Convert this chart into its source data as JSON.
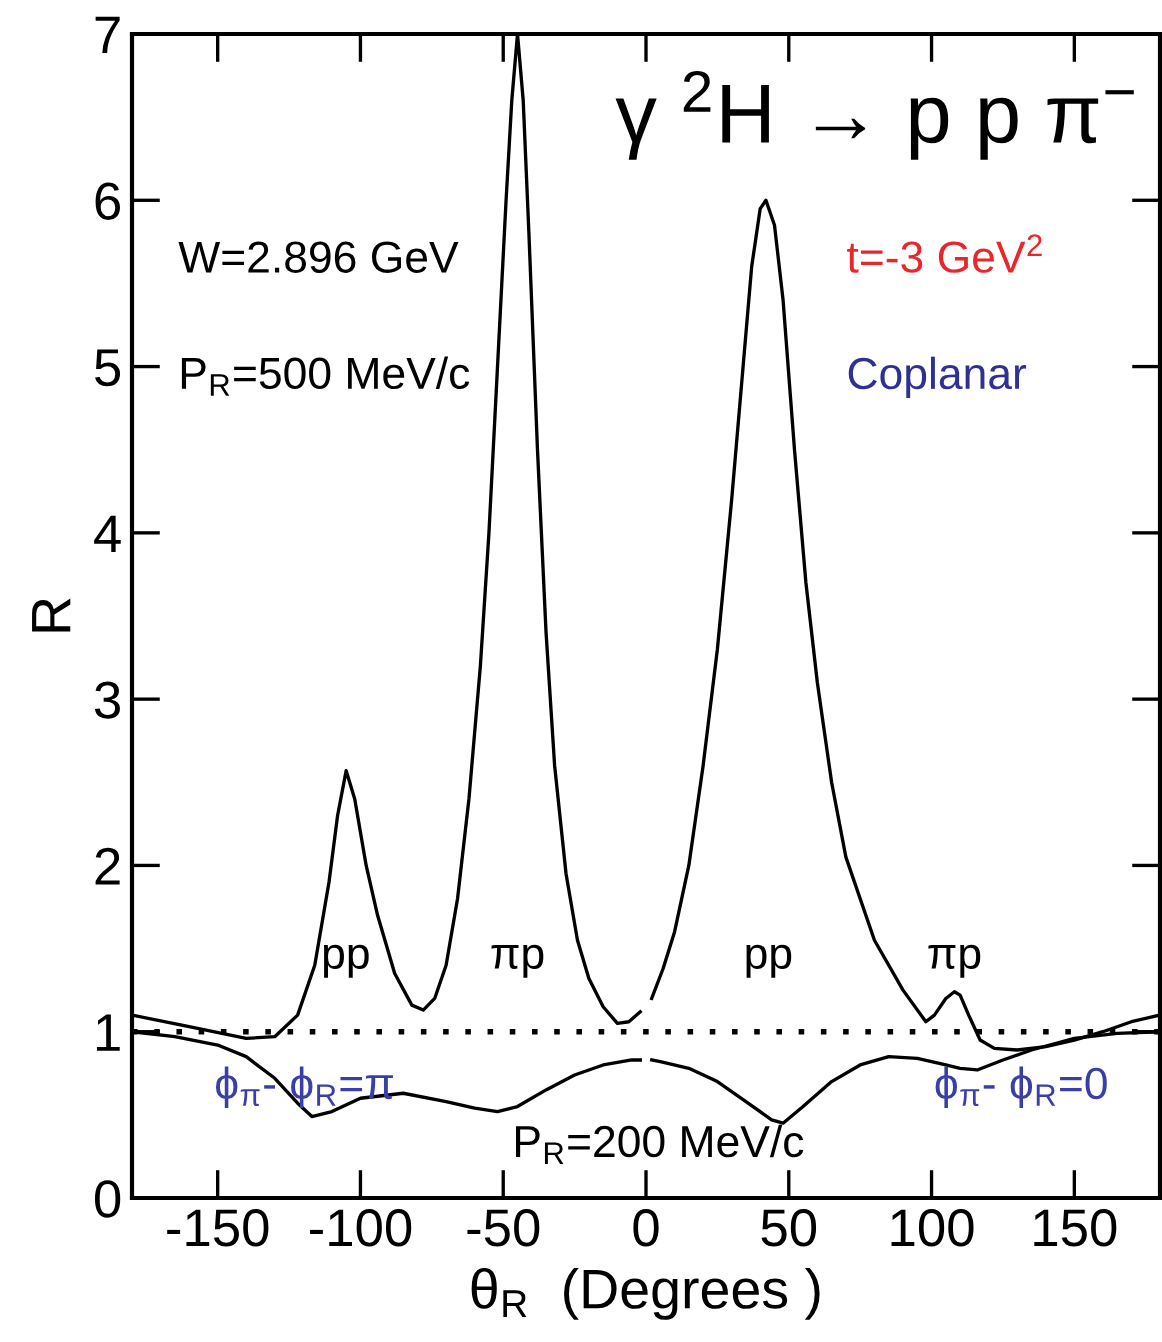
{
  "chart_data": {
    "type": "line",
    "title": "γ $^{2}$H → p p π$^{−}$",
    "xlabel": "θ$_{R}$  (Degrees )",
    "ylabel": "R",
    "xlim": [
      -180,
      180
    ],
    "xticks": [
      -150,
      -100,
      -50,
      0,
      50,
      100,
      150
    ],
    "ylim": [
      0,
      7
    ],
    "yticks": [
      0,
      1,
      2,
      3,
      4,
      5,
      6,
      7
    ],
    "grid": false,
    "legend": false,
    "marker": "none",
    "line_style": "solid",
    "series": [
      {
        "color": "#000000",
        "x": [
          -180,
          -160,
          -140,
          -130,
          -122,
          -116,
          -111,
          -108,
          -105,
          -102,
          -98,
          -94,
          -88,
          -82,
          -78,
          -74,
          -70,
          -66,
          -62,
          -58,
          -55,
          -52,
          -49,
          -47,
          -45,
          -43,
          -41,
          -38,
          -35,
          -32,
          -28,
          -24,
          -20,
          -15,
          -10,
          -6,
          -2,
          0,
          2,
          6,
          10,
          15,
          20,
          25,
          30,
          34,
          37,
          40,
          42,
          45,
          48,
          52,
          56,
          60,
          65,
          70,
          80,
          90,
          98,
          101,
          105,
          108,
          110,
          113,
          117,
          122,
          130,
          140,
          150,
          160,
          170,
          180
        ],
        "values": [
          1.1,
          1.03,
          0.96,
          0.97,
          1.1,
          1.4,
          1.9,
          2.3,
          2.57,
          2.4,
          2.0,
          1.7,
          1.35,
          1.16,
          1.13,
          1.2,
          1.4,
          1.8,
          2.4,
          3.2,
          4.0,
          5.0,
          6.0,
          6.6,
          7.0,
          6.6,
          5.8,
          4.5,
          3.4,
          2.6,
          1.95,
          1.55,
          1.32,
          1.15,
          1.05,
          1.06,
          1.12,
          null,
          1.2,
          1.38,
          1.6,
          2.0,
          2.6,
          3.3,
          4.2,
          5.0,
          5.6,
          5.95,
          6.0,
          5.85,
          5.4,
          4.5,
          3.7,
          3.1,
          2.5,
          2.05,
          1.55,
          1.25,
          1.06,
          1.1,
          1.2,
          1.24,
          1.22,
          1.1,
          0.95,
          0.9,
          0.89,
          0.91,
          0.95,
          1.0,
          1.06,
          1.1
        ]
      },
      {
        "color": "#000000",
        "x": [
          -180,
          -165,
          -150,
          -140,
          -130,
          -122,
          -117,
          -110,
          -100,
          -85,
          -70,
          -60,
          -52,
          -45,
          -35,
          -25,
          -15,
          -5,
          -2,
          0,
          2,
          5,
          15,
          25,
          35,
          44,
          48,
          55,
          65,
          75,
          85,
          95,
          105,
          110,
          116,
          125,
          135,
          150,
          165,
          180
        ],
        "values": [
          1.0,
          0.97,
          0.92,
          0.85,
          0.72,
          0.57,
          0.49,
          0.52,
          0.6,
          0.63,
          0.58,
          0.54,
          0.52,
          0.55,
          0.65,
          0.74,
          0.8,
          0.83,
          0.83,
          null,
          0.83,
          0.82,
          0.78,
          0.7,
          0.58,
          0.47,
          0.45,
          0.55,
          0.7,
          0.8,
          0.85,
          0.84,
          0.8,
          0.78,
          0.77,
          0.83,
          0.89,
          0.96,
          0.99,
          1.0
        ]
      }
    ],
    "ref_lines": [
      {
        "axis": "y",
        "value": 1,
        "color": "#000000",
        "line_style": "dotted"
      }
    ],
    "annotations": [
      "W=2.896 GeV",
      "P$_{R}$=500 MeV/c",
      "t=-3 GeV$^{2}$",
      "Coplanar",
      "pp",
      "πp",
      "pp",
      "πp",
      "ϕ$_{π}$- ϕ$_{R}$=π",
      "P$_{R}$=200 MeV/c",
      "ϕ$_{π}$- ϕ$_{R}$=0"
    ]
  }
}
